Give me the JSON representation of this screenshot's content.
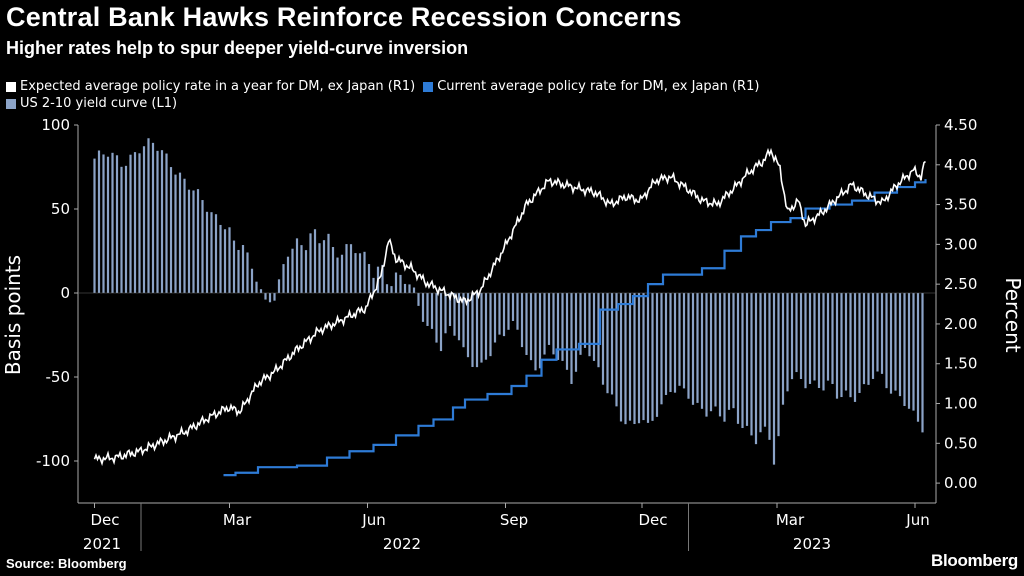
{
  "title": "Central Bank Hawks Reinforce Recession Concerns",
  "subtitle": "Higher rates help to spur deeper yield-curve inversion",
  "source": "Source: Bloomberg",
  "brand": "Bloomberg",
  "legend": [
    {
      "label": "Expected average policy rate in a year for DM, ex Japan (R1)",
      "color": "#ffffff"
    },
    {
      "label": "Current average policy rate for DM, ex Japan (R1)",
      "color": "#2e7bd6"
    },
    {
      "label": "US 2-10 yield curve (L1)",
      "color": "#8ba3c7"
    }
  ],
  "chart_data": {
    "type": "bar",
    "grid": false,
    "legend_position": "top-left",
    "x_tick_labels": [
      "Dec",
      "Mar",
      "Jun",
      "Sep",
      "Dec",
      "Mar",
      "Jun"
    ],
    "x_year_labels": [
      "2021",
      "2022",
      "2023"
    ],
    "ylabel_left": "Basis points",
    "ylabel_right": "Percent",
    "ylim_left": [
      -125,
      100
    ],
    "ylim_right": [
      -0.25,
      4.5
    ],
    "yticks_left": [
      "100",
      "50",
      "0",
      "-50",
      "-100"
    ],
    "yticks_right": [
      "4.50",
      "4.00",
      "3.50",
      "3.00",
      "2.50",
      "2.00",
      "1.50",
      "1.00",
      "0.50",
      "0.00"
    ],
    "colors": {
      "bars": "#8ba3c7",
      "expected": "#ffffff",
      "current": "#2e7bd6"
    },
    "series": [
      {
        "name": "US 2-10 yield curve (L1)",
        "axis": "left",
        "type": "bar",
        "points": [
          [
            "2021-12-01",
            80
          ],
          [
            "2021-12-10",
            82
          ],
          [
            "2021-12-20",
            78
          ],
          [
            "2021-12-31",
            86
          ],
          [
            "2022-01-10",
            88
          ],
          [
            "2022-01-20",
            80
          ],
          [
            "2022-01-31",
            65
          ],
          [
            "2022-02-10",
            55
          ],
          [
            "2022-02-20",
            46
          ],
          [
            "2022-02-28",
            40
          ],
          [
            "2022-03-05",
            25
          ],
          [
            "2022-03-10",
            28
          ],
          [
            "2022-03-15",
            15
          ],
          [
            "2022-03-20",
            10
          ],
          [
            "2022-03-25",
            -5
          ],
          [
            "2022-03-31",
            -2
          ],
          [
            "2022-04-05",
            10
          ],
          [
            "2022-04-10",
            25
          ],
          [
            "2022-04-15",
            30
          ],
          [
            "2022-04-20",
            28
          ],
          [
            "2022-04-25",
            40
          ],
          [
            "2022-04-30",
            30
          ],
          [
            "2022-05-05",
            35
          ],
          [
            "2022-05-10",
            20
          ],
          [
            "2022-05-15",
            25
          ],
          [
            "2022-05-20",
            30
          ],
          [
            "2022-05-25",
            28
          ],
          [
            "2022-05-31",
            20
          ],
          [
            "2022-06-05",
            10
          ],
          [
            "2022-06-10",
            15
          ],
          [
            "2022-06-15",
            5
          ],
          [
            "2022-06-20",
            12
          ],
          [
            "2022-06-25",
            10
          ],
          [
            "2022-06-30",
            5
          ],
          [
            "2022-07-05",
            -10
          ],
          [
            "2022-07-10",
            -20
          ],
          [
            "2022-07-15",
            -25
          ],
          [
            "2022-07-20",
            -30
          ],
          [
            "2022-07-25",
            -20
          ],
          [
            "2022-07-31",
            -25
          ],
          [
            "2022-08-05",
            -40
          ],
          [
            "2022-08-10",
            -42
          ],
          [
            "2022-08-15",
            -45
          ],
          [
            "2022-08-20",
            -35
          ],
          [
            "2022-08-25",
            -30
          ],
          [
            "2022-08-31",
            -25
          ],
          [
            "2022-09-05",
            -20
          ],
          [
            "2022-09-10",
            -25
          ],
          [
            "2022-09-15",
            -35
          ],
          [
            "2022-09-20",
            -45
          ],
          [
            "2022-09-25",
            -40
          ],
          [
            "2022-09-30",
            -35
          ],
          [
            "2022-10-05",
            -38
          ],
          [
            "2022-10-10",
            -45
          ],
          [
            "2022-10-15",
            -50
          ],
          [
            "2022-10-20",
            -40
          ],
          [
            "2022-10-25",
            -30
          ],
          [
            "2022-10-31",
            -45
          ],
          [
            "2022-11-05",
            -55
          ],
          [
            "2022-11-10",
            -60
          ],
          [
            "2022-11-15",
            -70
          ],
          [
            "2022-11-20",
            -75
          ],
          [
            "2022-11-25",
            -80
          ],
          [
            "2022-11-30",
            -75
          ],
          [
            "2022-12-05",
            -82
          ],
          [
            "2022-12-10",
            -72
          ],
          [
            "2022-12-15",
            -65
          ],
          [
            "2022-12-20",
            -55
          ],
          [
            "2022-12-25",
            -58
          ],
          [
            "2022-12-31",
            -60
          ],
          [
            "2023-01-05",
            -70
          ],
          [
            "2023-01-10",
            -68
          ],
          [
            "2023-01-15",
            -70
          ],
          [
            "2023-01-20",
            -68
          ],
          [
            "2023-01-25",
            -75
          ],
          [
            "2023-01-31",
            -72
          ],
          [
            "2023-02-05",
            -80
          ],
          [
            "2023-02-10",
            -82
          ],
          [
            "2023-02-15",
            -85
          ],
          [
            "2023-02-20",
            -80
          ],
          [
            "2023-02-25",
            -88
          ],
          [
            "2023-02-28",
            -108
          ],
          [
            "2023-03-03",
            -80
          ],
          [
            "2023-03-07",
            -60
          ],
          [
            "2023-03-10",
            -50
          ],
          [
            "2023-03-15",
            -48
          ],
          [
            "2023-03-20",
            -52
          ],
          [
            "2023-03-25",
            -55
          ],
          [
            "2023-03-31",
            -58
          ],
          [
            "2023-04-05",
            -55
          ],
          [
            "2023-04-10",
            -60
          ],
          [
            "2023-04-15",
            -58
          ],
          [
            "2023-04-20",
            -62
          ],
          [
            "2023-04-25",
            -60
          ],
          [
            "2023-04-30",
            -58
          ],
          [
            "2023-05-05",
            -48
          ],
          [
            "2023-05-10",
            -50
          ],
          [
            "2023-05-15",
            -55
          ],
          [
            "2023-05-20",
            -60
          ],
          [
            "2023-05-25",
            -65
          ],
          [
            "2023-05-31",
            -75
          ],
          [
            "2023-06-05",
            -80
          ],
          [
            "2023-06-08",
            -82
          ]
        ]
      },
      {
        "name": "Expected average policy rate in a year for DM, ex Japan (R1)",
        "axis": "right",
        "type": "line",
        "points": [
          [
            "2021-12-01",
            0.3
          ],
          [
            "2021-12-15",
            0.32
          ],
          [
            "2021-12-31",
            0.4
          ],
          [
            "2022-01-15",
            0.52
          ],
          [
            "2022-01-31",
            0.65
          ],
          [
            "2022-02-15",
            0.82
          ],
          [
            "2022-02-28",
            0.95
          ],
          [
            "2022-03-08",
            0.9
          ],
          [
            "2022-03-20",
            1.25
          ],
          [
            "2022-03-31",
            1.4
          ],
          [
            "2022-04-15",
            1.68
          ],
          [
            "2022-04-30",
            1.92
          ],
          [
            "2022-05-15",
            2.05
          ],
          [
            "2022-05-31",
            2.2
          ],
          [
            "2022-06-10",
            2.6
          ],
          [
            "2022-06-15",
            3.05
          ],
          [
            "2022-06-20",
            2.82
          ],
          [
            "2022-06-30",
            2.7
          ],
          [
            "2022-07-10",
            2.52
          ],
          [
            "2022-07-20",
            2.42
          ],
          [
            "2022-07-31",
            2.32
          ],
          [
            "2022-08-05",
            2.28
          ],
          [
            "2022-08-15",
            2.42
          ],
          [
            "2022-08-31",
            2.95
          ],
          [
            "2022-09-15",
            3.5
          ],
          [
            "2022-09-30",
            3.8
          ],
          [
            "2022-10-10",
            3.75
          ],
          [
            "2022-10-20",
            3.7
          ],
          [
            "2022-10-31",
            3.65
          ],
          [
            "2022-11-10",
            3.5
          ],
          [
            "2022-11-20",
            3.6
          ],
          [
            "2022-11-30",
            3.55
          ],
          [
            "2022-12-10",
            3.8
          ],
          [
            "2022-12-20",
            3.85
          ],
          [
            "2022-12-31",
            3.7
          ],
          [
            "2023-01-10",
            3.55
          ],
          [
            "2023-01-20",
            3.5
          ],
          [
            "2023-01-31",
            3.7
          ],
          [
            "2023-02-10",
            3.9
          ],
          [
            "2023-02-20",
            4.05
          ],
          [
            "2023-02-25",
            4.18
          ],
          [
            "2023-03-03",
            3.95
          ],
          [
            "2023-03-08",
            3.4
          ],
          [
            "2023-03-15",
            3.55
          ],
          [
            "2023-03-20",
            3.25
          ],
          [
            "2023-03-31",
            3.4
          ],
          [
            "2023-04-10",
            3.58
          ],
          [
            "2023-04-20",
            3.75
          ],
          [
            "2023-04-30",
            3.62
          ],
          [
            "2023-05-10",
            3.52
          ],
          [
            "2023-05-20",
            3.75
          ],
          [
            "2023-05-31",
            3.93
          ],
          [
            "2023-06-05",
            3.85
          ],
          [
            "2023-06-08",
            4.05
          ]
        ]
      },
      {
        "name": "Current average policy rate for DM, ex Japan (R1)",
        "axis": "right",
        "type": "step",
        "points": [
          [
            "2022-02-25",
            0.1
          ],
          [
            "2022-03-05",
            0.13
          ],
          [
            "2022-03-20",
            0.2
          ],
          [
            "2022-04-15",
            0.22
          ],
          [
            "2022-05-05",
            0.32
          ],
          [
            "2022-05-20",
            0.4
          ],
          [
            "2022-06-05",
            0.48
          ],
          [
            "2022-06-20",
            0.6
          ],
          [
            "2022-07-05",
            0.72
          ],
          [
            "2022-07-15",
            0.8
          ],
          [
            "2022-07-28",
            0.95
          ],
          [
            "2022-08-05",
            1.05
          ],
          [
            "2022-08-20",
            1.12
          ],
          [
            "2022-09-05",
            1.22
          ],
          [
            "2022-09-15",
            1.35
          ],
          [
            "2022-09-25",
            1.55
          ],
          [
            "2022-10-05",
            1.68
          ],
          [
            "2022-10-20",
            1.75
          ],
          [
            "2022-11-03",
            2.18
          ],
          [
            "2022-11-15",
            2.25
          ],
          [
            "2022-11-25",
            2.35
          ],
          [
            "2022-12-05",
            2.5
          ],
          [
            "2022-12-15",
            2.62
          ],
          [
            "2022-12-31",
            2.62
          ],
          [
            "2023-01-10",
            2.7
          ],
          [
            "2023-01-25",
            2.92
          ],
          [
            "2023-02-05",
            3.1
          ],
          [
            "2023-02-15",
            3.18
          ],
          [
            "2023-02-25",
            3.28
          ],
          [
            "2023-03-10",
            3.33
          ],
          [
            "2023-03-20",
            3.45
          ],
          [
            "2023-04-05",
            3.5
          ],
          [
            "2023-04-20",
            3.55
          ],
          [
            "2023-05-05",
            3.65
          ],
          [
            "2023-05-20",
            3.72
          ],
          [
            "2023-06-01",
            3.78
          ],
          [
            "2023-06-08",
            3.82
          ]
        ]
      }
    ]
  }
}
